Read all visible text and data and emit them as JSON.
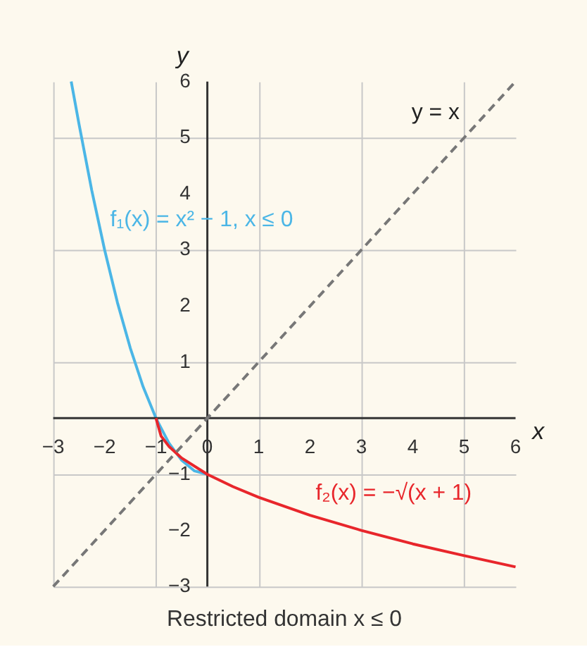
{
  "chart_data": {
    "type": "line",
    "xlabel": "x",
    "ylabel": "y",
    "xlim": [
      -3,
      6
    ],
    "ylim": [
      -3,
      6
    ],
    "xticks": [
      -3,
      -2,
      -1,
      0,
      1,
      2,
      3,
      4,
      5,
      6
    ],
    "yticks": [
      -3,
      -2,
      -1,
      {
        "value": 0,
        "label": null
      },
      1,
      2,
      3,
      4,
      5,
      6
    ],
    "grid": true,
    "legend": false,
    "marker": "none",
    "annotations": [
      "Restricted domain x ≤ 0"
    ],
    "series": [
      {
        "name": "f₁(x) = x² − 1, x ≤ 0",
        "color": "#4bb6e6",
        "line_style": "solid",
        "x": [
          -2.65,
          -2.5,
          -2.25,
          -2,
          -1.75,
          -1.5,
          -1.25,
          -1,
          -0.75,
          -0.5,
          -0.25,
          0
        ],
        "values": [
          6,
          5.25,
          4.06,
          3,
          2.06,
          1.25,
          0.56,
          0,
          -0.44,
          -0.75,
          -0.94,
          -1
        ]
      },
      {
        "name": "f₂(x) = −√(x + 1)",
        "color": "#e8262b",
        "line_style": "solid",
        "x": [
          -1,
          -0.9,
          -0.75,
          -0.5,
          0,
          0.5,
          1,
          2,
          3,
          4,
          5,
          6
        ],
        "values": [
          0,
          -0.32,
          -0.5,
          -0.71,
          -1,
          -1.22,
          -1.41,
          -1.73,
          -2,
          -2.24,
          -2.45,
          -2.65
        ]
      },
      {
        "name": "y = x",
        "color": "#777777",
        "line_style": "dashed",
        "x": [
          -3,
          6
        ],
        "values": [
          -3,
          6
        ]
      }
    ]
  }
}
